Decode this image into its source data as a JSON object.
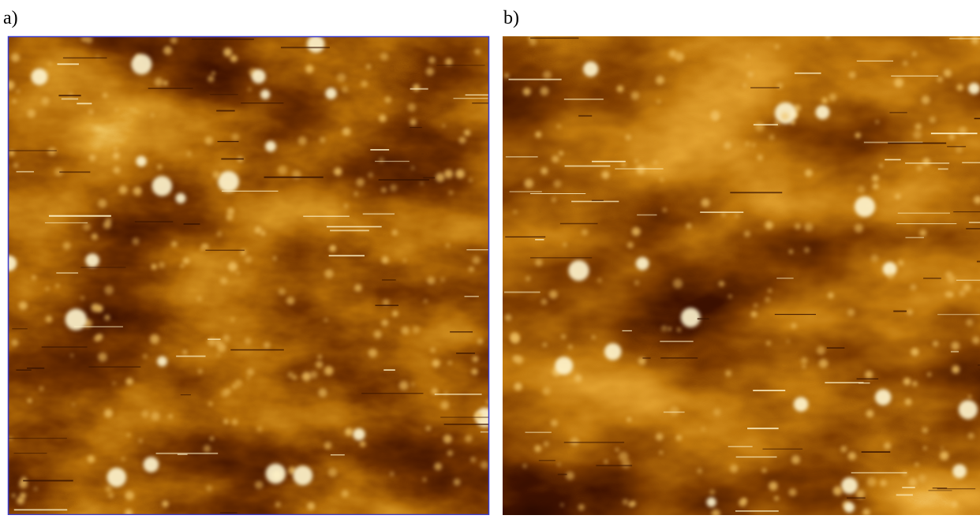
{
  "panels": [
    {
      "label": "a)"
    },
    {
      "label": "b)"
    }
  ]
}
